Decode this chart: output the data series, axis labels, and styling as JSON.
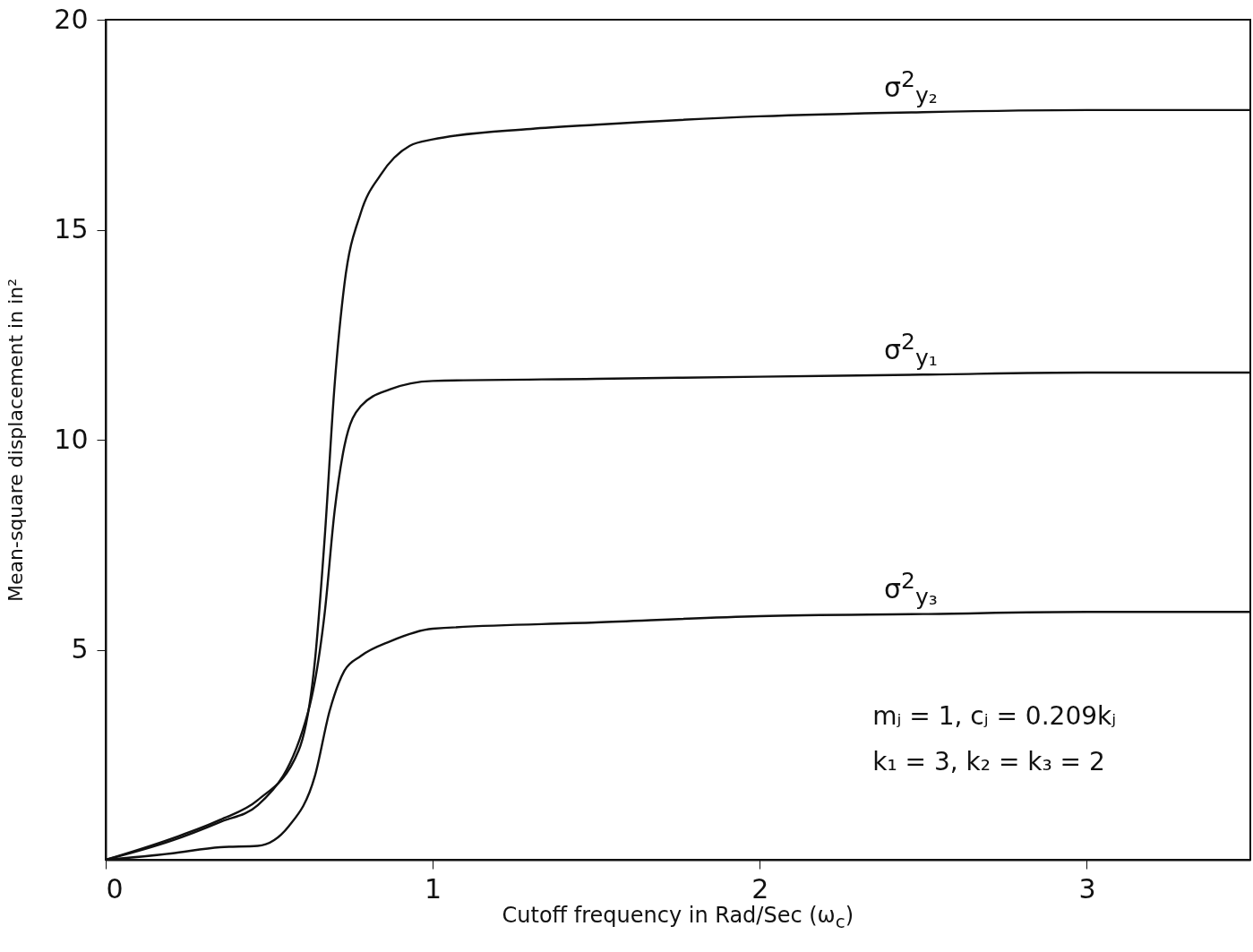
{
  "chart_data": {
    "type": "line",
    "xlabel": "Cutoff frequency in Rad/Sec (ω$_{c}$)",
    "ylabel": "Mean-square displacement in in²",
    "xlim": [
      0,
      3.5
    ],
    "ylim": [
      0,
      20
    ],
    "xticks": [
      0,
      1,
      2,
      3
    ],
    "yticks": [
      5,
      10,
      15,
      20
    ],
    "grid": false,
    "marker": "none",
    "line_style": "solid",
    "annotations": [
      "mⱼ = 1, cⱼ = 0.209kⱼ",
      "k₁ = 3, k₂ = k₃ = 2"
    ],
    "series": [
      {
        "name": "σ$^{2}$$_{y₂}$",
        "color": "#111111",
        "x": [
          0,
          0.2,
          0.35,
          0.465,
          0.59,
          0.64,
          0.67,
          0.7,
          0.73,
          0.78,
          0.84,
          0.93,
          1,
          1.3,
          1.5,
          2,
          2.5,
          3,
          3.5
        ],
        "values": [
          0,
          0.5,
          0.95,
          1.42,
          2.6,
          4.75,
          7.7,
          11.3,
          13.7,
          15.4,
          16.3,
          17.0,
          17.15,
          17.4,
          17.5,
          17.7,
          17.8,
          17.85,
          17.85
        ]
      },
      {
        "name": "σ$^{2}$$_{y₁}$",
        "color": "#111111",
        "x": [
          0,
          0.2,
          0.35,
          0.465,
          0.62,
          0.67,
          0.7,
          0.73,
          0.78,
          0.87,
          1,
          1.5,
          2,
          2.5,
          3,
          3.5
        ],
        "values": [
          0,
          0.45,
          0.9,
          1.3,
          3.55,
          5.9,
          8.3,
          9.85,
          10.8,
          11.2,
          11.4,
          11.45,
          11.5,
          11.55,
          11.6,
          11.6
        ]
      },
      {
        "name": "σ$^{2}$$_{y₃}$",
        "color": "#111111",
        "x": [
          0,
          0.2,
          0.35,
          0.465,
          0.56,
          0.64,
          0.685,
          0.73,
          0.78,
          0.87,
          1,
          1.5,
          2,
          2.5,
          3,
          3.5
        ],
        "values": [
          0,
          0.15,
          0.3,
          0.33,
          0.8,
          2.0,
          3.55,
          4.5,
          4.85,
          5.2,
          5.5,
          5.65,
          5.8,
          5.85,
          5.9,
          5.9
        ]
      }
    ]
  }
}
